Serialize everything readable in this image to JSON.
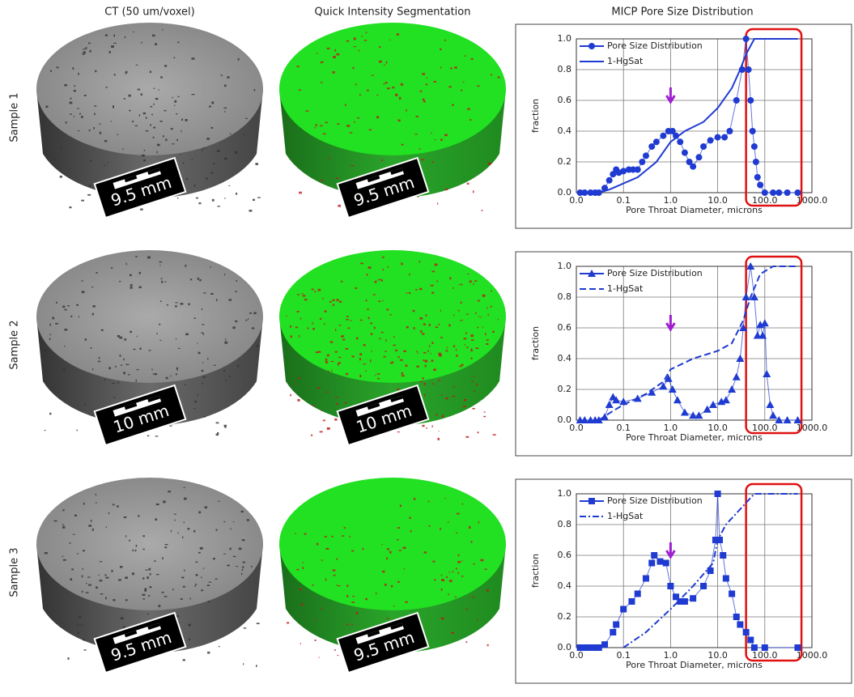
{
  "column_headers": [
    "CT (50 um/voxel)",
    "Quick Intensity Segmentation",
    "MICP Pore Size Distribution"
  ],
  "row_labels": [
    "Sample 1",
    "Sample 2",
    "Sample 3"
  ],
  "scale_labels": [
    "9.5 mm",
    "10 mm",
    "9.5 mm"
  ],
  "chart_data": [
    {
      "type": "line",
      "xlabel": "Pore Throat Diameter, microns",
      "ylabel": "fraction",
      "log_x": true,
      "grid": true,
      "legend": "upper left",
      "xlim": [
        0.01,
        1000
      ],
      "xticks": [
        {
          "value": 0.01,
          "label": "0.0"
        },
        0.1,
        {
          "value": 1,
          "label": "1.0"
        },
        {
          "value": 10,
          "label": "10.0"
        },
        {
          "value": 100,
          "label": "100.0"
        },
        {
          "value": 1000,
          "label": "1000.0"
        }
      ],
      "ylim": [
        0,
        1
      ],
      "yticks": [
        {
          "value": 0,
          "label": "0.0"
        },
        0.2,
        0.4,
        0.6,
        0.8,
        {
          "value": 1,
          "label": "1.0"
        }
      ],
      "arrow_x": 1,
      "highlight_range": [
        40,
        600
      ],
      "series": [
        {
          "name": "Pore Size Distribution",
          "color": "#1f3bd1",
          "marker": "circle",
          "linestyle": "solid",
          "x": [
            0.012,
            0.015,
            0.02,
            0.025,
            0.03,
            0.04,
            0.05,
            0.06,
            0.07,
            0.08,
            0.1,
            0.13,
            0.16,
            0.2,
            0.25,
            0.3,
            0.4,
            0.5,
            0.7,
            0.9,
            1.1,
            1.3,
            1.6,
            2,
            2.5,
            3,
            4,
            5,
            7,
            10,
            14,
            18,
            25,
            33,
            40,
            45,
            50,
            55,
            60,
            65,
            70,
            80,
            100,
            150,
            200,
            300,
            500
          ],
          "values": [
            0,
            0,
            0,
            0,
            0,
            0.03,
            0.08,
            0.12,
            0.15,
            0.13,
            0.14,
            0.15,
            0.15,
            0.15,
            0.2,
            0.24,
            0.3,
            0.33,
            0.37,
            0.4,
            0.4,
            0.37,
            0.33,
            0.26,
            0.2,
            0.17,
            0.23,
            0.3,
            0.34,
            0.36,
            0.36,
            0.4,
            0.6,
            0.8,
            1.0,
            0.8,
            0.6,
            0.4,
            0.3,
            0.2,
            0.1,
            0.05,
            0,
            0,
            0,
            0,
            0
          ]
        },
        {
          "name": "1-HgSat",
          "color": "#1f3bd1",
          "marker": "none",
          "linestyle": "solid",
          "x": [
            0.03,
            0.05,
            0.1,
            0.2,
            0.5,
            1,
            2,
            5,
            10,
            20,
            30,
            40,
            60,
            100,
            500
          ],
          "values": [
            0,
            0.02,
            0.06,
            0.1,
            0.2,
            0.33,
            0.4,
            0.46,
            0.55,
            0.68,
            0.8,
            0.9,
            1.0,
            1.0,
            1.0
          ]
        }
      ]
    },
    {
      "type": "line",
      "xlabel": "Pore Throat Diameter, microns",
      "ylabel": "fraction",
      "log_x": true,
      "grid": true,
      "legend": "upper left",
      "xlim": [
        0.01,
        1000
      ],
      "xticks": [
        {
          "value": 0.01,
          "label": "0.0"
        },
        0.1,
        {
          "value": 1,
          "label": "1.0"
        },
        {
          "value": 10,
          "label": "10.0"
        },
        {
          "value": 100,
          "label": "100.0"
        },
        {
          "value": 1000,
          "label": "1000.0"
        }
      ],
      "ylim": [
        0,
        1
      ],
      "yticks": [
        {
          "value": 0,
          "label": "0.0"
        },
        0.2,
        0.4,
        0.6,
        0.8,
        {
          "value": 1,
          "label": "1.0"
        }
      ],
      "arrow_x": 1,
      "highlight_range": [
        40,
        600
      ],
      "series": [
        {
          "name": "Pore Size Distribution",
          "color": "#1f3bd1",
          "marker": "triangle",
          "linestyle": "solid",
          "x": [
            0.012,
            0.015,
            0.02,
            0.025,
            0.03,
            0.04,
            0.05,
            0.06,
            0.07,
            0.1,
            0.2,
            0.4,
            0.7,
            0.9,
            1.1,
            1.4,
            2,
            3,
            4,
            6,
            8,
            12,
            15,
            20,
            25,
            30,
            35,
            40,
            50,
            60,
            70,
            80,
            90,
            100,
            110,
            130,
            150,
            200,
            300,
            500
          ],
          "values": [
            0,
            0,
            0,
            0,
            0,
            0.02,
            0.1,
            0.15,
            0.13,
            0.12,
            0.14,
            0.18,
            0.22,
            0.27,
            0.2,
            0.13,
            0.05,
            0.03,
            0.03,
            0.07,
            0.1,
            0.12,
            0.13,
            0.2,
            0.28,
            0.4,
            0.6,
            0.8,
            1.0,
            0.8,
            0.55,
            0.62,
            0.55,
            0.63,
            0.3,
            0.1,
            0.03,
            0,
            0,
            0
          ]
        },
        {
          "name": "1-HgSat",
          "color": "#1f3bd1",
          "marker": "none",
          "linestyle": "dashed",
          "x": [
            0.03,
            0.06,
            0.1,
            0.3,
            0.7,
            1,
            3,
            10,
            20,
            35,
            50,
            80,
            150,
            500
          ],
          "values": [
            0,
            0.06,
            0.1,
            0.17,
            0.25,
            0.33,
            0.4,
            0.45,
            0.5,
            0.65,
            0.8,
            0.95,
            1.0,
            1.0
          ]
        }
      ]
    },
    {
      "type": "line",
      "xlabel": "Pore Throat Diameter, microns",
      "ylabel": "fraction",
      "log_x": true,
      "grid": true,
      "legend": "upper left",
      "xlim": [
        0.01,
        1000
      ],
      "xticks": [
        {
          "value": 0.01,
          "label": "0.0"
        },
        0.1,
        {
          "value": 1,
          "label": "1.0"
        },
        {
          "value": 10,
          "label": "10.0"
        },
        {
          "value": 100,
          "label": "100.0"
        },
        {
          "value": 1000,
          "label": "1000.0"
        }
      ],
      "ylim": [
        0,
        1
      ],
      "yticks": [
        {
          "value": 0,
          "label": "0.0"
        },
        0.2,
        0.4,
        0.6,
        0.8,
        {
          "value": 1,
          "label": "1.0"
        }
      ],
      "arrow_x": 1,
      "highlight_range": [
        40,
        600
      ],
      "series": [
        {
          "name": "Pore Size Distribution",
          "color": "#1f3bd1",
          "marker": "square",
          "linestyle": "solid",
          "x": [
            0.012,
            0.015,
            0.02,
            0.025,
            0.03,
            0.04,
            0.06,
            0.07,
            0.1,
            0.15,
            0.2,
            0.3,
            0.4,
            0.45,
            0.6,
            0.8,
            1,
            1.3,
            1.6,
            2,
            3,
            5,
            7,
            9,
            10,
            11,
            13,
            15,
            20,
            25,
            30,
            40,
            50,
            60,
            100,
            500
          ],
          "values": [
            0,
            0,
            0,
            0,
            0,
            0.02,
            0.1,
            0.15,
            0.25,
            0.3,
            0.35,
            0.45,
            0.55,
            0.6,
            0.56,
            0.55,
            0.4,
            0.33,
            0.3,
            0.3,
            0.32,
            0.4,
            0.5,
            0.7,
            1.0,
            0.7,
            0.6,
            0.45,
            0.35,
            0.2,
            0.15,
            0.1,
            0.05,
            0,
            0,
            0
          ]
        },
        {
          "name": "1-HgSat",
          "color": "#1f3bd1",
          "marker": "none",
          "linestyle": "dashdot",
          "x": [
            0.1,
            0.3,
            1,
            3,
            8,
            10,
            15,
            30,
            60,
            500
          ],
          "values": [
            0,
            0.1,
            0.25,
            0.4,
            0.55,
            0.7,
            0.8,
            0.9,
            1.0,
            1.0
          ]
        }
      ]
    }
  ]
}
